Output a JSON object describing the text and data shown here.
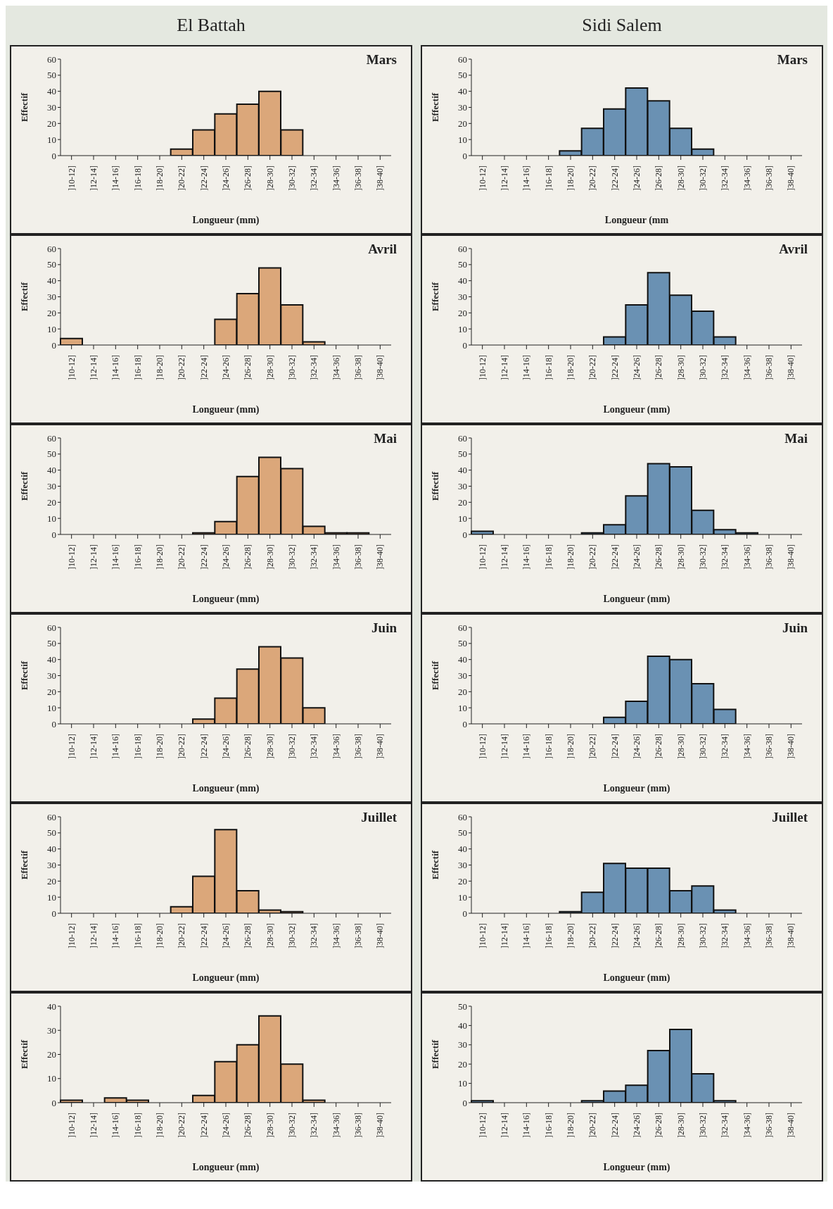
{
  "chart_data": [
    {
      "type": "bar",
      "title": "El Battah",
      "annotations": [
        "Mars"
      ],
      "xlabel": "Longueur (mm)",
      "ylabel": "Effectif",
      "categories": [
        "]10-12]",
        "]12-14]",
        "]14-16]",
        "]16-18]",
        "]18-20]",
        "]20-22]",
        "]22-24]",
        "]24-26]",
        "]26-28]",
        "]28-30]",
        "]30-32]",
        "]32-34]",
        "]34-36]",
        "]36-38]",
        "]38-40]"
      ],
      "values": [
        0,
        0,
        0,
        0,
        0,
        4,
        16,
        26,
        32,
        40,
        16,
        0,
        0,
        0,
        0
      ],
      "color": "#dba77a",
      "ylim": [
        0,
        60
      ],
      "yticks": [
        0,
        10,
        20,
        30,
        40,
        50,
        60
      ]
    },
    {
      "type": "bar",
      "title": "Sidi Salem",
      "annotations": [
        "Mars"
      ],
      "xlabel": "Longueur (mm",
      "ylabel": "Effectif",
      "categories": [
        "]10-12]",
        "]12-14]",
        "]14-16]",
        "]16-18]",
        "]18-20]",
        "]20-22]",
        "]22-24]",
        "]24-26]",
        "]26-28]",
        "]28-30]",
        "]30-32]",
        "]32-34]",
        "]34-36]",
        "]36-38]",
        "]38-40]"
      ],
      "values": [
        0,
        0,
        0,
        0,
        3,
        17,
        29,
        42,
        34,
        17,
        4,
        0,
        0,
        0,
        0
      ],
      "color": "#6a91b3",
      "ylim": [
        0,
        60
      ],
      "yticks": [
        0,
        10,
        20,
        30,
        40,
        50,
        60
      ]
    },
    {
      "type": "bar",
      "annotations": [
        "Avril"
      ],
      "xlabel": "Longueur (mm)",
      "ylabel": "Effectif",
      "categories": [
        "]10-12]",
        "]12-14]",
        "]14-16]",
        "]16-18]",
        "]18-20]",
        "]20-22]",
        "]22-24]",
        "]24-26]",
        "]26-28]",
        "]28-30]",
        "]30-32]",
        "]32-34]",
        "]34-36]",
        "]36-38]",
        "]38-40]"
      ],
      "values": [
        4,
        0,
        0,
        0,
        0,
        0,
        0,
        16,
        32,
        48,
        25,
        2,
        0,
        0,
        0
      ],
      "color": "#dba77a",
      "ylim": [
        0,
        60
      ],
      "yticks": [
        0,
        10,
        20,
        30,
        40,
        50,
        60
      ]
    },
    {
      "type": "bar",
      "annotations": [
        "Avril"
      ],
      "xlabel": "Longueur (mm)",
      "ylabel": "Effectif",
      "categories": [
        "]10-12]",
        "]12-14]",
        "]14-16]",
        "]16-18]",
        "]18-20]",
        "]20-22]",
        "]22-24]",
        "]24-26]",
        "]26-28]",
        "]28-30]",
        "]30-32]",
        "]32-34]",
        "]34-36]",
        "]36-38]",
        "]38-40]"
      ],
      "values": [
        0,
        0,
        0,
        0,
        0,
        0,
        5,
        25,
        45,
        31,
        21,
        5,
        0,
        0,
        0
      ],
      "color": "#6a91b3",
      "ylim": [
        0,
        60
      ],
      "yticks": [
        0,
        10,
        20,
        30,
        40,
        50,
        60
      ]
    },
    {
      "type": "bar",
      "annotations": [
        "Mai"
      ],
      "xlabel": "Longueur (mm)",
      "ylabel": "Effectif",
      "categories": [
        "]10-12]",
        "]12-14]",
        "]14-16]",
        "]16-18]",
        "]18-20]",
        "]20-22]",
        "]22-24]",
        "]24-26]",
        "]26-28]",
        "]28-30]",
        "]30-32]",
        "]32-34]",
        "]34-36]",
        "]36-38]",
        "]38-40]"
      ],
      "values": [
        0,
        0,
        0,
        0,
        0,
        0,
        1,
        8,
        36,
        48,
        41,
        5,
        1,
        1,
        0
      ],
      "color": "#dba77a",
      "ylim": [
        0,
        60
      ],
      "yticks": [
        0,
        10,
        20,
        30,
        40,
        50,
        60
      ]
    },
    {
      "type": "bar",
      "annotations": [
        "Mai"
      ],
      "xlabel": "Longueur (mm)",
      "ylabel": "Effectif",
      "categories": [
        "]10-12]",
        "]12-14]",
        "]14-16]",
        "]16-18]",
        "]18-20]",
        "]20-22]",
        "]22-24]",
        "]24-26]",
        "]26-28]",
        "]28-30]",
        "]30-32]",
        "]32-34]",
        "]34-36]",
        "]36-38]",
        "]38-40]"
      ],
      "values": [
        2,
        0,
        0,
        0,
        0,
        1,
        6,
        24,
        44,
        42,
        15,
        3,
        1,
        0,
        0
      ],
      "color": "#6a91b3",
      "ylim": [
        0,
        60
      ],
      "yticks": [
        0,
        10,
        20,
        30,
        40,
        50,
        60
      ]
    },
    {
      "type": "bar",
      "annotations": [
        "Juin"
      ],
      "xlabel": "Longueur (mm)",
      "ylabel": "Effectif",
      "categories": [
        "]10-12]",
        "]12-14]",
        "]14-16]",
        "]16-18]",
        "]18-20]",
        "]20-22]",
        "]22-24]",
        "]24-26]",
        "]26-28]",
        "]28-30]",
        "]30-32]",
        "]32-34]",
        "]34-36]",
        "]36-38]",
        "]38-40]"
      ],
      "values": [
        0,
        0,
        0,
        0,
        0,
        0,
        3,
        16,
        34,
        48,
        41,
        10,
        0,
        0,
        0
      ],
      "color": "#dba77a",
      "ylim": [
        0,
        60
      ],
      "yticks": [
        0,
        10,
        20,
        30,
        40,
        50,
        60
      ]
    },
    {
      "type": "bar",
      "annotations": [
        "Juin"
      ],
      "xlabel": "Longueur (mm)",
      "ylabel": "Effectif",
      "categories": [
        "]10-12]",
        "]12-14]",
        "]14-16]",
        "]16-18]",
        "]18-20]",
        "]20-22]",
        "]22-24]",
        "]24-26]",
        "]26-28]",
        "]28-30]",
        "]30-32]",
        "]32-34]",
        "]34-36]",
        "]36-38]",
        "]38-40]"
      ],
      "values": [
        0,
        0,
        0,
        0,
        0,
        0,
        4,
        14,
        42,
        40,
        25,
        9,
        0,
        0,
        0
      ],
      "color": "#6a91b3",
      "ylim": [
        0,
        60
      ],
      "yticks": [
        0,
        10,
        20,
        30,
        40,
        50,
        60
      ]
    },
    {
      "type": "bar",
      "annotations": [
        "Juillet"
      ],
      "xlabel": "Longueur (mm)",
      "ylabel": "Effectif",
      "categories": [
        "]10-12]",
        "]12-14]",
        "]14-16]",
        "]16-18]",
        "]18-20]",
        "]20-22]",
        "]22-24]",
        "]24-26]",
        "]26-28]",
        "]28-30]",
        "]30-32]",
        "]32-34]",
        "]34-36]",
        "]36-38]",
        "]38-40]"
      ],
      "values": [
        0,
        0,
        0,
        0,
        0,
        4,
        23,
        52,
        14,
        2,
        1,
        0,
        0,
        0,
        0
      ],
      "color": "#dba77a",
      "ylim": [
        0,
        60
      ],
      "yticks": [
        0,
        10,
        20,
        30,
        40,
        50,
        60
      ]
    },
    {
      "type": "bar",
      "annotations": [
        "Juillet"
      ],
      "xlabel": "Longueur (mm)",
      "ylabel": "Effectif",
      "categories": [
        "]10-12]",
        "]12-14]",
        "]14-16]",
        "]16-18]",
        "]18-20]",
        "]20-22]",
        "]22-24]",
        "]24-26]",
        "]26-28]",
        "]28-30]",
        "]30-32]",
        "]32-34]",
        "]34-36]",
        "]36-38]",
        "]38-40]"
      ],
      "values": [
        0,
        0,
        0,
        0,
        1,
        13,
        31,
        28,
        28,
        14,
        17,
        2,
        0,
        0,
        0
      ],
      "color": "#6a91b3",
      "ylim": [
        0,
        60
      ],
      "yticks": [
        0,
        10,
        20,
        30,
        40,
        50,
        60
      ]
    },
    {
      "type": "bar",
      "xlabel": "Longueur (mm)",
      "ylabel": "Effectif",
      "categories": [
        "]10-12]",
        "]12-14]",
        "]14-16]",
        "]16-18]",
        "]18-20]",
        "]20-22]",
        "]22-24]",
        "]24-26]",
        "]26-28]",
        "]28-30]",
        "]30-32]",
        "]32-34]",
        "]34-36]",
        "]36-38]",
        "]38-40]"
      ],
      "values": [
        1,
        0,
        2,
        1,
        0,
        0,
        3,
        17,
        24,
        36,
        16,
        1,
        0,
        0,
        0
      ],
      "color": "#dba77a",
      "ylim": [
        0,
        40
      ],
      "yticks": [
        0,
        10,
        20,
        30,
        40
      ]
    },
    {
      "type": "bar",
      "xlabel": "Longueur (mm)",
      "ylabel": "Effectif",
      "categories": [
        "]10-12]",
        "]12-14]",
        "]14-16]",
        "]16-18]",
        "]18-20]",
        "]20-22]",
        "]22-24]",
        "]24-26]",
        "]26-28]",
        "]28-30]",
        "]30-32]",
        "]32-34]",
        "]34-36]",
        "]36-38]",
        "]38-40]"
      ],
      "values": [
        1,
        0,
        0,
        0,
        0,
        1,
        6,
        9,
        27,
        38,
        15,
        1,
        0,
        0,
        0
      ],
      "color": "#6a91b3",
      "ylim": [
        0,
        50
      ],
      "yticks": [
        0,
        10,
        20,
        30,
        40,
        50
      ]
    }
  ]
}
